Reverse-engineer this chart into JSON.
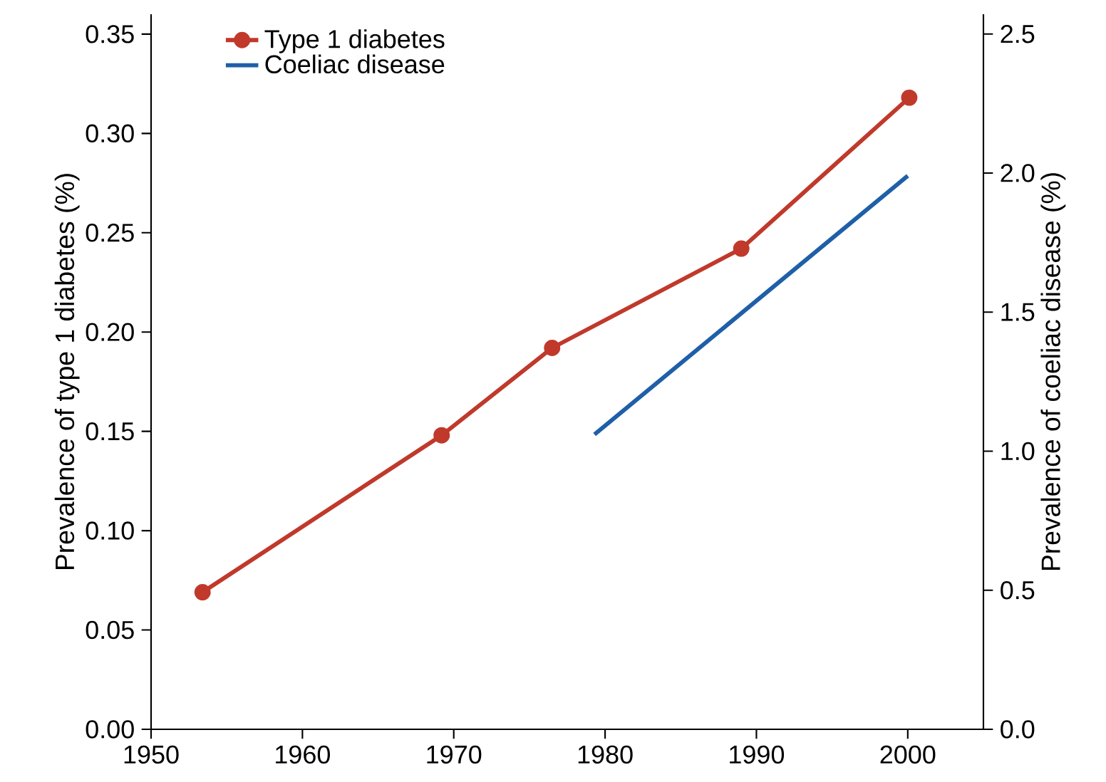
{
  "chart_data": {
    "type": "line",
    "ylabel": "Prevalence of type 1 diabetes (%)",
    "y2label": "Prevalence of coeliac disease (%)",
    "series": [
      {
        "name": "Type 1 diabetes",
        "color": "#c0392b",
        "marker": "circle",
        "x": [
          1953.4,
          1969.2,
          1976.5,
          1989,
          2000.1
        ],
        "values": [
          0.069,
          0.148,
          0.192,
          0.242,
          0.318
        ]
      },
      {
        "name": "Coeliac disease",
        "color": "#1f5fa8",
        "marker": "none",
        "axis": "y2",
        "x": [
          1979.3,
          2000
        ],
        "values": [
          1.06,
          1.99
        ]
      }
    ],
    "xlim": [
      1950,
      2005
    ],
    "xticks": [
      1950,
      1960,
      1970,
      1980,
      1990,
      2000
    ],
    "ylim": [
      0,
      0.36
    ],
    "yticks": [
      {
        "value": 0,
        "label": "0.00"
      },
      0.05,
      {
        "value": 0.1,
        "label": "0.10"
      },
      0.15,
      {
        "value": 0.2,
        "label": "0.20"
      },
      0.25,
      {
        "value": 0.3,
        "label": "0.30"
      },
      0.35
    ],
    "y2lim": [
      0,
      2.571
    ],
    "y2ticks": [
      {
        "value": 0,
        "label": "0.0"
      },
      0.5,
      {
        "value": 1,
        "label": "1.0"
      },
      1.5,
      {
        "value": 2,
        "label": "2.0"
      },
      2.5
    ],
    "grid": false,
    "legend": "top left",
    "line_style": "solid"
  }
}
